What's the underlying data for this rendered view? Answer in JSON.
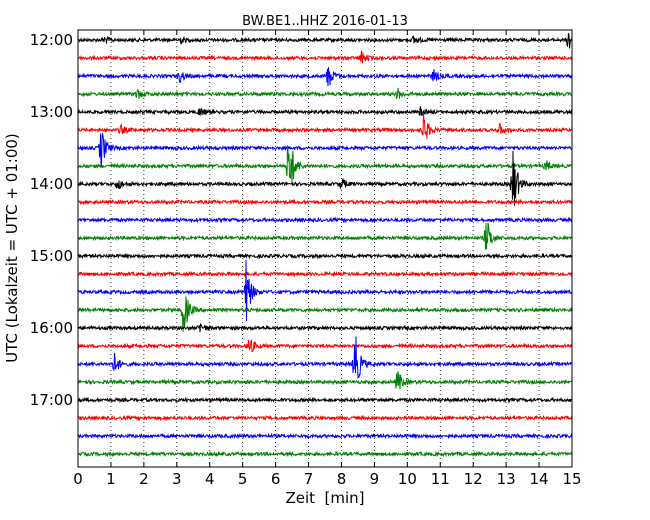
{
  "chart_data": {
    "type": "line",
    "title": "BW.BE1..HHZ 2016-01-13",
    "xlabel": "Zeit  [min]",
    "ylabel": "UTC (Lokalzeit = UTC + 01:00)",
    "xlim": [
      0,
      15
    ],
    "x_ticks": [
      "0",
      "1",
      "2",
      "3",
      "4",
      "5",
      "6",
      "7",
      "8",
      "9",
      "10",
      "11",
      "12",
      "13",
      "14",
      "15"
    ],
    "y_ticks": [
      "12:00",
      "13:00",
      "14:00",
      "15:00",
      "16:00",
      "17:00"
    ],
    "grid": true,
    "grid_style": "dotted",
    "line_colors": [
      "#000000",
      "#ff0000",
      "#0000ff",
      "#008000"
    ],
    "trace_interval_min": 15,
    "start_time": "12:00",
    "trace_count": 24,
    "events": [
      {
        "trace": 0,
        "minute": 14.9,
        "amp": 0.9
      },
      {
        "trace": 0,
        "minute": 0.8,
        "amp": 0.3
      },
      {
        "trace": 0,
        "minute": 3.1,
        "amp": 0.25
      },
      {
        "trace": 0,
        "minute": 10.2,
        "amp": 0.3
      },
      {
        "trace": 1,
        "minute": 8.6,
        "amp": 0.5
      },
      {
        "trace": 2,
        "minute": 7.6,
        "amp": 0.9
      },
      {
        "trace": 2,
        "minute": 3.1,
        "amp": 0.45
      },
      {
        "trace": 2,
        "minute": 10.8,
        "amp": 0.45
      },
      {
        "trace": 3,
        "minute": 1.8,
        "amp": 0.35
      },
      {
        "trace": 3,
        "minute": 9.7,
        "amp": 0.4
      },
      {
        "trace": 4,
        "minute": 3.7,
        "amp": 0.3
      },
      {
        "trace": 4,
        "minute": 10.4,
        "amp": 0.3
      },
      {
        "trace": 5,
        "minute": 10.5,
        "amp": 1.2
      },
      {
        "trace": 5,
        "minute": 1.3,
        "amp": 0.35
      },
      {
        "trace": 5,
        "minute": 12.8,
        "amp": 0.4
      },
      {
        "trace": 6,
        "minute": 0.7,
        "amp": 1.6
      },
      {
        "trace": 7,
        "minute": 6.4,
        "amp": 3.0
      },
      {
        "trace": 7,
        "minute": 14.2,
        "amp": 0.4
      },
      {
        "trace": 8,
        "minute": 13.2,
        "amp": 2.7
      },
      {
        "trace": 8,
        "minute": 1.2,
        "amp": 0.45
      },
      {
        "trace": 8,
        "minute": 8.0,
        "amp": 0.4
      },
      {
        "trace": 11,
        "minute": 12.4,
        "amp": 1.5
      },
      {
        "trace": 14,
        "minute": 5.1,
        "amp": 2.4
      },
      {
        "trace": 15,
        "minute": 3.2,
        "amp": 2.0
      },
      {
        "trace": 16,
        "minute": 3.7,
        "amp": 0.4
      },
      {
        "trace": 17,
        "minute": 5.2,
        "amp": 0.7
      },
      {
        "trace": 18,
        "minute": 8.4,
        "amp": 2.7
      },
      {
        "trace": 18,
        "minute": 1.1,
        "amp": 0.8
      },
      {
        "trace": 19,
        "minute": 9.7,
        "amp": 0.9
      }
    ]
  }
}
